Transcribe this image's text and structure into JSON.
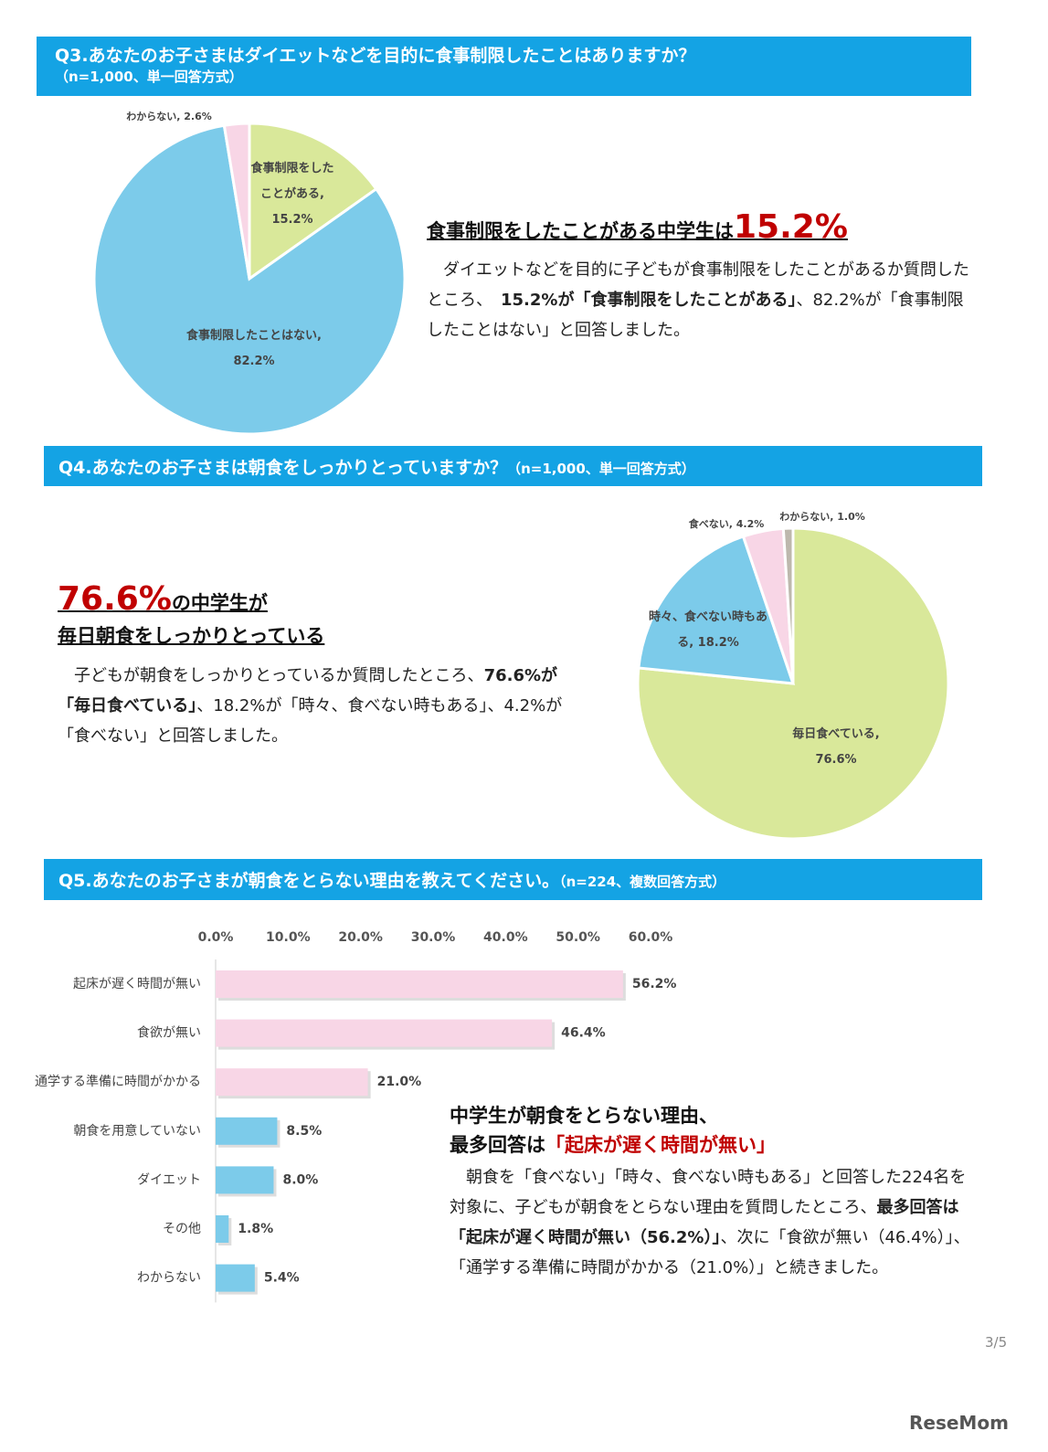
{
  "sections": [
    {
      "title": "Q3.あなたのお子さまはダイエットなどを目的に食事制限したことはありますか？",
      "note": "（n=1,000、単一回答方式）",
      "heading": [
        "食事制限をしたことがある中学生は",
        "15.2%"
      ],
      "body": [
        "　ダイエットなどを目的に子どもが食事制限をしたことがあるか質問したところ、　",
        "15.2%が「食事制限をしたことがある」",
        "、82.2%が「食事制限したことはない」と回答しました。"
      ]
    },
    {
      "title": "Q4.あなたのお子さまは朝食をしっかりとっていますか？",
      "note": "（n=1,000、単一回答方式）",
      "heading": [
        "76.6%",
        "の中学生が",
        "毎日朝食をしっかりとっている"
      ],
      "body": [
        "　子どもが朝食をしっかりとっているか質問したところ、",
        "76.6%が「毎日食べている」",
        "、18.2%が「時々、食べない時もある」、4.2%が「食べない」と回答しました。"
      ]
    },
    {
      "title": "Q5.あなたのお子さまが朝食をとらない理由を教えてください。",
      "note": "（n=224、複数回答方式）",
      "heading": [
        "中学生が朝食をとらない理由、",
        "最多回答は",
        "「起床が遅く時間が無い」"
      ],
      "body": [
        "　朝食を「食べない」「時々、食べない時もある」と回答した224名を対象に、子どもが朝食をとらない理由を質問したところ、",
        "最多回答は「起床が遅く時間が無い（56.2%）」",
        "、次に「食欲が無い（46.4%）」、「通学する準備に時間がかかる（21.0%）」と続きました。"
      ]
    }
  ],
  "chart_data": [
    {
      "type": "pie",
      "categories": [
        "食事制限をしたことがある",
        "食事制限したことはない",
        "わからない"
      ],
      "values": [
        15.2,
        82.2,
        2.6
      ],
      "value_labels": [
        "食事制限をしたことがある, 15.2%",
        "食事制限したことはない, 82.2%",
        "わからない, 2.6%"
      ],
      "colors": [
        "#d9e89a",
        "#7ccbea",
        "#f8d6e6"
      ]
    },
    {
      "type": "pie",
      "categories": [
        "毎日食べている",
        "時々、食べない時もある",
        "食べない",
        "わからない"
      ],
      "values": [
        76.6,
        18.2,
        4.2,
        1.0
      ],
      "value_labels": [
        "毎日食べている, 76.6%",
        "時々、食べない時もある, 18.2%",
        "食べない, 4.2%",
        "わからない, 1.0%"
      ],
      "colors": [
        "#d9e89a",
        "#7ccbea",
        "#f8d6e6",
        "#bdb8ad"
      ]
    },
    {
      "type": "hbar",
      "categories": [
        "起床が遅く時間が無い",
        "食欲が無い",
        "通学する準備に時間がかかる",
        "朝食を用意していない",
        "ダイエット",
        "その他",
        "わからない"
      ],
      "values": [
        56.2,
        46.4,
        21.0,
        8.5,
        8.0,
        1.8,
        5.4
      ],
      "value_labels": [
        "56.2%",
        "46.4%",
        "21.0%",
        "8.5%",
        "8.0%",
        "1.8%",
        "5.4%"
      ],
      "colors": [
        "#f8d6e6",
        "#f8d6e6",
        "#f8d6e6",
        "#7ccbea",
        "#7ccbea",
        "#7ccbea",
        "#7ccbea"
      ],
      "xlim": [
        0,
        60
      ],
      "xticks": [
        {
          "value": 0,
          "label": "0.0%"
        },
        {
          "value": 10,
          "label": "10.0%"
        },
        {
          "value": 20,
          "label": "20.0%"
        },
        {
          "value": 30,
          "label": "30.0%"
        },
        {
          "value": 40,
          "label": "40.0%"
        },
        {
          "value": 50,
          "label": "50.0%"
        },
        {
          "value": 60,
          "label": "60.0%"
        }
      ]
    }
  ],
  "page_number": "3/5",
  "logo": "ReseMom"
}
